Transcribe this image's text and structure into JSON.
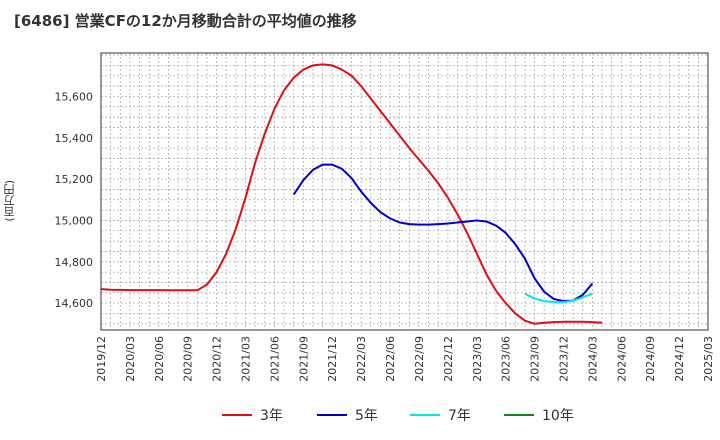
{
  "chart_data": {
    "type": "line",
    "title": "[6486]  営業CFの12か月移動合計の平均値の推移",
    "ylabel": "(百万円)",
    "xlabel": "",
    "ylim": [
      14470,
      15810
    ],
    "yticks": [
      14600,
      14800,
      15000,
      15200,
      15400,
      15600
    ],
    "ytick_labels": [
      "14,600",
      "14,800",
      "15,000",
      "15,200",
      "15,400",
      "15,600"
    ],
    "x_ticks": [
      "2019/12",
      "2020/03",
      "2020/06",
      "2020/09",
      "2020/12",
      "2021/03",
      "2021/06",
      "2021/09",
      "2021/12",
      "2022/03",
      "2022/06",
      "2022/09",
      "2022/12",
      "2023/03",
      "2023/06",
      "2023/09",
      "2023/12",
      "2024/03",
      "2024/06",
      "2024/09",
      "2024/12",
      "2025/03"
    ],
    "grid": true,
    "legend_position": "bottom",
    "series": [
      {
        "name": "3年",
        "color": "#dd1111",
        "start": "2019/12",
        "values": [
          14668,
          14665,
          14664,
          14663,
          14663,
          14663,
          14663,
          14662,
          14662,
          14662,
          14662,
          14690,
          14750,
          14840,
          14960,
          15110,
          15280,
          15420,
          15540,
          15630,
          15690,
          15730,
          15750,
          15755,
          15750,
          15730,
          15700,
          15650,
          15590,
          15530,
          15470,
          15410,
          15350,
          15295,
          15240,
          15180,
          15110,
          15030,
          14940,
          14840,
          14740,
          14660,
          14600,
          14550,
          14515,
          14500,
          14505,
          14508,
          14510,
          14510,
          14510,
          14508,
          14505
        ]
      },
      {
        "name": "5年",
        "color": "#0000cc",
        "start": "2021/08",
        "values": [
          15125,
          15195,
          15245,
          15270,
          15270,
          15250,
          15205,
          15140,
          15085,
          15040,
          15010,
          14990,
          14982,
          14980,
          14980,
          14982,
          14985,
          14990,
          14995,
          15000,
          14995,
          14975,
          14940,
          14885,
          14815,
          14720,
          14655,
          14620,
          14610,
          14612,
          14640,
          14695
        ]
      },
      {
        "name": "7年",
        "color": "#00e5ee",
        "start": "2023/08",
        "values": [
          14645,
          14622,
          14610,
          14605,
          14605,
          14612,
          14628,
          14645
        ]
      },
      {
        "name": "10年",
        "color": "#118811",
        "start": "",
        "values": []
      }
    ]
  },
  "legend": {
    "items": [
      {
        "label": "3年",
        "color": "#dd1111"
      },
      {
        "label": "5年",
        "color": "#0000cc"
      },
      {
        "label": "7年",
        "color": "#00e5ee"
      },
      {
        "label": "10年",
        "color": "#118811"
      }
    ]
  }
}
